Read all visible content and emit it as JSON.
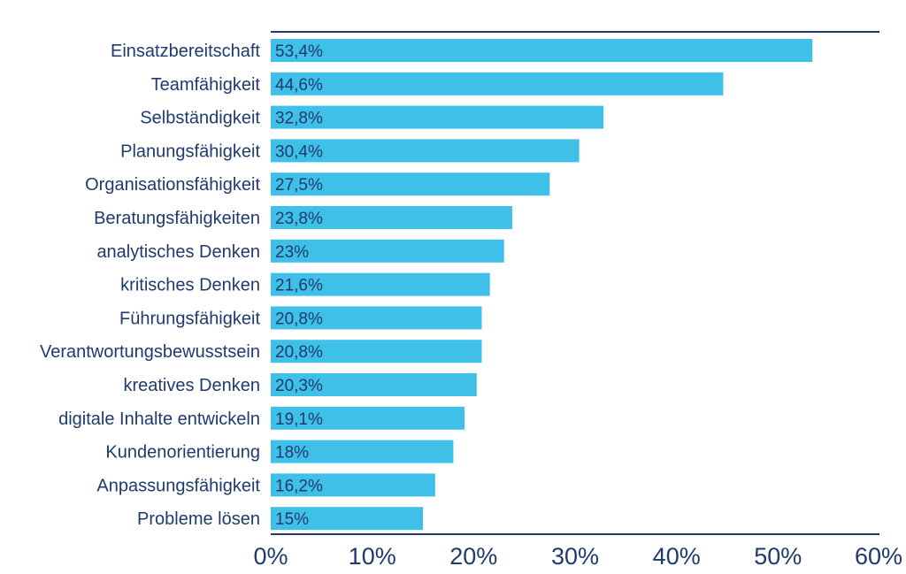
{
  "chart_data": {
    "type": "bar",
    "orientation": "horizontal",
    "categories": [
      "Einsatzbereitschaft",
      "Teamfähigkeit",
      "Selbständigkeit",
      "Planungsfähigkeit",
      "Organisationsfähigkeit",
      "Beratungsfähigkeiten",
      "analytisches Denken",
      "kritisches Denken",
      "Führungsfähigkeit",
      "Verantwortungsbewusstsein",
      "kreatives Denken",
      "digitale Inhalte entwickeln",
      "Kundenorientierung",
      "Anpassungsfähigkeit",
      "Probleme lösen"
    ],
    "values": [
      53.4,
      44.6,
      32.8,
      30.4,
      27.5,
      23.8,
      23,
      21.6,
      20.8,
      20.8,
      20.3,
      19.1,
      18,
      16.2,
      15
    ],
    "data_labels": [
      "53,4%",
      "44,6%",
      "32,8%",
      "30,4%",
      "27,5%",
      "23,8%",
      "23%",
      "21,6%",
      "20,8%",
      "20,8%",
      "20,3%",
      "19,1%",
      "18%",
      "16,2%",
      "15%"
    ],
    "xlim": [
      0,
      60
    ],
    "x_ticks": [
      0,
      10,
      20,
      30,
      40,
      50,
      60
    ],
    "x_tick_labels": [
      "0%",
      "10%",
      "20%",
      "30%",
      "40%",
      "50%",
      "60%"
    ],
    "title": "",
    "xlabel": "",
    "ylabel": "",
    "grid": false,
    "legend": "none",
    "colors": {
      "bar": "#3fc0e8",
      "text": "#1f3a6e",
      "axis": "#1f3a6e"
    }
  }
}
